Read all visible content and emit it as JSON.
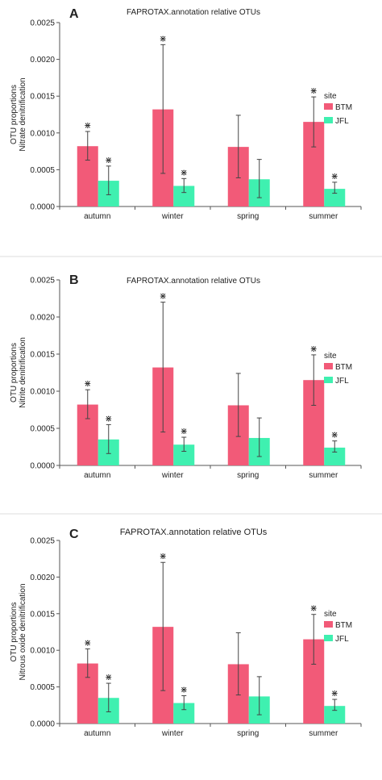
{
  "chart_data": [
    {
      "type": "bar",
      "panel_label": "A",
      "title": "FAPROTAX.annotation relative OTUs",
      "ylabel": "OTU proportions Nitrate denitrification",
      "ylabel_lines": [
        "OTU proportions",
        "Nitrate denitrification"
      ],
      "categories": [
        "autumn",
        "winter",
        "spring",
        "summer"
      ],
      "ylim": [
        0,
        0.0025
      ],
      "yticks": [
        0,
        0.0005,
        0.001,
        0.0015,
        0.002,
        0.0025
      ],
      "ytick_labels": [
        "0.0000",
        "0.0005",
        "0.0010",
        "0.0015",
        "0.0020",
        "0.0025"
      ],
      "grid": false,
      "legend_title": "site",
      "legend_position": "right",
      "series": [
        {
          "name": "BTM",
          "color": "#f25a78",
          "values": [
            0.00082,
            0.00132,
            0.00081,
            0.00115
          ],
          "err_low": [
            0.00063,
            0.00045,
            0.00039,
            0.00081
          ],
          "err_high": [
            0.00102,
            0.0022,
            0.00124,
            0.00149
          ],
          "significance": [
            true,
            true,
            false,
            true
          ]
        },
        {
          "name": "JFL",
          "color": "#3ff0b0",
          "values": [
            0.00035,
            0.00028,
            0.00037,
            0.00024
          ],
          "err_low": [
            0.00016,
            0.00019,
            0.00012,
            0.00018
          ],
          "err_high": [
            0.00055,
            0.00038,
            0.00064,
            0.00033
          ],
          "significance": [
            true,
            true,
            false,
            true
          ]
        }
      ],
      "significance_mark": "⋇"
    },
    {
      "type": "bar",
      "panel_label": "B",
      "title": "FAPROTAX.annotation relative OTUs",
      "ylabel": "OTU proportions Nitrite denitrification",
      "ylabel_lines": [
        "OTU proportions",
        "Nitrite denitrification"
      ],
      "categories": [
        "autumn",
        "winter",
        "spring",
        "summer"
      ],
      "ylim": [
        0,
        0.0025
      ],
      "yticks": [
        0,
        0.0005,
        0.001,
        0.0015,
        0.002,
        0.0025
      ],
      "ytick_labels": [
        "0.0000",
        "0.0005",
        "0.0010",
        "0.0015",
        "0.0020",
        "0.0025"
      ],
      "grid": false,
      "legend_title": "site",
      "legend_position": "right",
      "series": [
        {
          "name": "BTM",
          "color": "#f25a78",
          "values": [
            0.00082,
            0.00132,
            0.00081,
            0.00115
          ],
          "err_low": [
            0.00063,
            0.00045,
            0.00039,
            0.00081
          ],
          "err_high": [
            0.00102,
            0.0022,
            0.00124,
            0.00149
          ],
          "significance": [
            true,
            true,
            false,
            true
          ]
        },
        {
          "name": "JFL",
          "color": "#3ff0b0",
          "values": [
            0.00035,
            0.00028,
            0.00037,
            0.00024
          ],
          "err_low": [
            0.00016,
            0.00019,
            0.00012,
            0.00018
          ],
          "err_high": [
            0.00055,
            0.00038,
            0.00064,
            0.00033
          ],
          "significance": [
            true,
            true,
            false,
            true
          ]
        }
      ],
      "significance_mark": "⋇"
    },
    {
      "type": "bar",
      "panel_label": "C",
      "title": "FAPROTAX.annotation relative OTUs",
      "ylabel": "OTU proportions Nitrous oxide denitrification",
      "ylabel_lines": [
        "OTU proportions",
        "Nitrous oxide denitrification"
      ],
      "categories": [
        "autumn",
        "winter",
        "spring",
        "summer"
      ],
      "ylim": [
        0,
        0.0025
      ],
      "yticks": [
        0,
        0.0005,
        0.001,
        0.0015,
        0.002,
        0.0025
      ],
      "ytick_labels": [
        "0.0000",
        "0.0005",
        "0.0010",
        "0.0015",
        "0.0020",
        "0.0025"
      ],
      "grid": false,
      "legend_title": "site",
      "legend_position": "right",
      "series": [
        {
          "name": "BTM",
          "color": "#f25a78",
          "values": [
            0.00082,
            0.00132,
            0.00081,
            0.00115
          ],
          "err_low": [
            0.00063,
            0.00045,
            0.00039,
            0.00081
          ],
          "err_high": [
            0.00102,
            0.0022,
            0.00124,
            0.00149
          ],
          "significance": [
            true,
            true,
            false,
            true
          ]
        },
        {
          "name": "JFL",
          "color": "#3ff0b0",
          "values": [
            0.00035,
            0.00028,
            0.00037,
            0.00024
          ],
          "err_low": [
            0.00016,
            0.00019,
            0.00012,
            0.00018
          ],
          "err_high": [
            0.00055,
            0.00038,
            0.00064,
            0.00033
          ],
          "significance": [
            true,
            true,
            false,
            true
          ]
        }
      ],
      "significance_mark": "⋇"
    }
  ]
}
